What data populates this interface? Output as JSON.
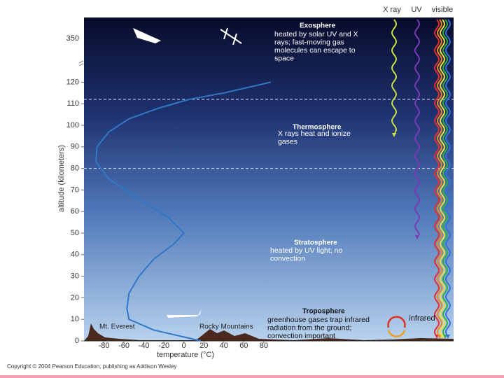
{
  "chart_data": {
    "type": "line",
    "xlabel": "temperature (°C)",
    "ylabel": "altitude (kilometers)",
    "x": [
      17,
      -30,
      -55,
      -57,
      -55,
      -45,
      -30,
      -10,
      0,
      -15,
      -45,
      -75,
      -88,
      -87,
      -75,
      -55,
      -25,
      5,
      40,
      87
    ],
    "values": [
      0,
      5,
      10,
      15,
      22,
      30,
      38,
      45,
      50,
      57,
      66,
      75,
      83,
      90,
      97,
      103,
      108,
      112,
      115,
      120
    ],
    "color": "#2f78c8",
    "xlim": [
      -100,
      270
    ],
    "xticks": [
      -80,
      -60,
      -40,
      -20,
      0,
      20,
      40,
      60,
      80
    ],
    "ylim": [
      0,
      150
    ],
    "yticks": [
      0,
      10,
      20,
      30,
      40,
      50,
      60,
      70,
      80,
      90,
      100,
      110,
      120
    ],
    "top_tick": 350,
    "layer_boundaries": [
      80,
      112
    ],
    "annotations": [
      {
        "title": "Exosphere",
        "lines": [
          "heated by solar UV and X",
          "rays; fast-moving gas",
          "molecules can escape to",
          "space"
        ]
      },
      {
        "title": "Thermosphere",
        "lines": [
          "X rays heat and ionize",
          "gases"
        ]
      },
      {
        "title": "Stratosphere",
        "lines": [
          "heated by UV light; no",
          "convection"
        ]
      },
      {
        "title": "Troposphere",
        "lines": [
          "greenhouse gases trap infrared",
          "radiation from the ground;",
          "convection important"
        ]
      }
    ],
    "spectrum": [
      "X ray",
      "UV",
      "visible",
      "infrared"
    ],
    "mountains": [
      "Mt. Everest",
      "Rocky Mountains"
    ],
    "source": "Copyright © 2004 Pearson Education, publishing as Addison Wesley"
  }
}
